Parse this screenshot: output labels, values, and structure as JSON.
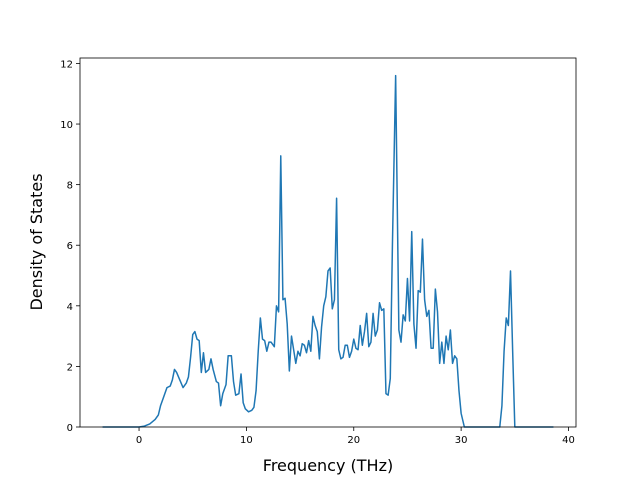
{
  "chart_data": {
    "type": "line",
    "x_label": "Frequency (THz)",
    "y_label": "Density of States",
    "x": [
      -3.4,
      0,
      0.5,
      1,
      1.5,
      1.8,
      2,
      2.3,
      2.6,
      2.9,
      3.1,
      3.3,
      3.5,
      3.8,
      4.1,
      4.4,
      4.6,
      4.8,
      5.0,
      5.2,
      5.4,
      5.6,
      5.8,
      6.0,
      6.2,
      6.5,
      6.7,
      6.9,
      7.2,
      7.4,
      7.6,
      7.8,
      8.1,
      8.3,
      8.6,
      8.8,
      9.0,
      9.3,
      9.5,
      9.7,
      9.9,
      10.2,
      10.5,
      10.7,
      10.9,
      11.1,
      11.3,
      11.5,
      11.7,
      11.9,
      12.1,
      12.3,
      12.6,
      12.8,
      13.0,
      13.2,
      13.4,
      13.6,
      13.8,
      14.0,
      14.2,
      14.4,
      14.6,
      14.8,
      15.0,
      15.2,
      15.4,
      15.6,
      15.8,
      16.0,
      16.2,
      16.4,
      16.6,
      16.8,
      17.0,
      17.2,
      17.4,
      17.6,
      17.8,
      18.0,
      18.2,
      18.4,
      18.6,
      18.8,
      19.0,
      19.2,
      19.4,
      19.6,
      19.8,
      20.0,
      20.2,
      20.4,
      20.6,
      20.8,
      21.0,
      21.2,
      21.4,
      21.6,
      21.8,
      22.0,
      22.2,
      22.4,
      22.6,
      22.8,
      23.0,
      23.2,
      23.4,
      23.6,
      23.9,
      24.2,
      24.4,
      24.6,
      24.8,
      25.0,
      25.2,
      25.4,
      25.6,
      25.8,
      26.0,
      26.2,
      26.4,
      26.6,
      26.8,
      27.0,
      27.2,
      27.4,
      27.6,
      27.8,
      28.0,
      28.2,
      28.4,
      28.6,
      28.8,
      29.0,
      29.2,
      29.4,
      29.6,
      29.8,
      30.0,
      30.3,
      33.6,
      33.8,
      34.0,
      34.2,
      34.4,
      34.6,
      34.8,
      35.0,
      35.2,
      38.6
    ],
    "series": [
      {
        "color": "#1f77b4",
        "values": [
          0,
          0,
          0.03,
          0.1,
          0.25,
          0.4,
          0.7,
          1.0,
          1.3,
          1.35,
          1.55,
          1.9,
          1.8,
          1.55,
          1.3,
          1.45,
          1.65,
          2.3,
          3.05,
          3.15,
          2.9,
          2.85,
          1.8,
          2.45,
          1.8,
          1.9,
          2.25,
          1.9,
          1.5,
          1.45,
          0.7,
          1.1,
          1.4,
          2.35,
          2.35,
          1.5,
          1.05,
          1.1,
          1.75,
          0.8,
          0.6,
          0.5,
          0.55,
          0.65,
          1.2,
          2.5,
          3.6,
          2.9,
          2.85,
          2.5,
          2.8,
          2.8,
          2.65,
          4.0,
          3.8,
          8.95,
          4.2,
          4.25,
          3.4,
          1.85,
          3.0,
          2.55,
          2.1,
          2.5,
          2.35,
          2.75,
          2.7,
          2.45,
          2.85,
          2.5,
          3.65,
          3.35,
          3.15,
          2.25,
          3.3,
          4.0,
          4.3,
          5.15,
          5.25,
          3.9,
          4.2,
          7.55,
          2.55,
          2.25,
          2.3,
          2.7,
          2.7,
          2.3,
          2.5,
          2.9,
          2.6,
          2.55,
          3.35,
          2.7,
          3.15,
          3.75,
          2.65,
          2.8,
          3.75,
          3.0,
          3.2,
          4.1,
          3.85,
          3.9,
          1.1,
          1.05,
          1.6,
          6.0,
          11.6,
          3.2,
          2.8,
          3.7,
          3.5,
          4.9,
          3.5,
          6.45,
          3.4,
          2.6,
          4.5,
          4.45,
          6.2,
          4.2,
          3.65,
          3.85,
          2.6,
          2.6,
          4.55,
          3.8,
          2.1,
          2.8,
          2.1,
          3.0,
          2.55,
          3.2,
          2.1,
          2.35,
          2.25,
          1.2,
          0.45,
          0,
          0,
          0.7,
          2.5,
          3.6,
          3.35,
          5.15,
          2.5,
          0,
          0,
          0
        ]
      }
    ],
    "xlim": [
      -5.5,
      40.7
    ],
    "ylim": [
      0,
      12.18
    ],
    "xticks": [
      0,
      10,
      20,
      30,
      40
    ],
    "yticks": [
      0,
      2,
      4,
      6,
      8,
      10,
      12
    ]
  }
}
